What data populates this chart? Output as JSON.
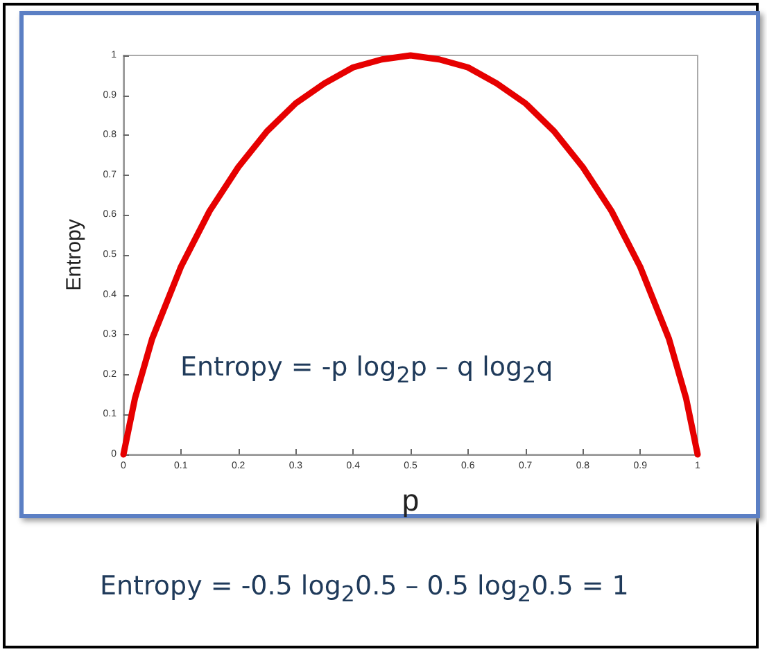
{
  "chart_data": {
    "type": "line",
    "xlabel": "p",
    "ylabel": "Entropy",
    "x": [
      0,
      0.02,
      0.05,
      0.1,
      0.15,
      0.2,
      0.25,
      0.3,
      0.35,
      0.4,
      0.45,
      0.5,
      0.55,
      0.6,
      0.65,
      0.7,
      0.75,
      0.8,
      0.85,
      0.9,
      0.95,
      0.98,
      1
    ],
    "series": [
      {
        "color": "#e60000",
        "values": [
          0,
          0.14,
          0.29,
          0.47,
          0.61,
          0.72,
          0.81,
          0.88,
          0.93,
          0.97,
          0.99,
          1,
          0.99,
          0.97,
          0.93,
          0.88,
          0.81,
          0.72,
          0.61,
          0.47,
          0.29,
          0.14,
          0
        ]
      }
    ],
    "xlim": [
      0,
      1
    ],
    "ylim": [
      0,
      1
    ],
    "xticks": [
      0,
      0.1,
      0.2,
      0.3,
      0.4,
      0.5,
      0.6,
      0.7,
      0.8,
      0.9,
      1
    ],
    "yticks": [
      0,
      0.1,
      0.2,
      0.3,
      0.4,
      0.5,
      0.6,
      0.7,
      0.8,
      0.9,
      1
    ],
    "grid": false,
    "marker": "none",
    "line_style": "solid",
    "annotations": [
      "Entropy  = -p log$_{2}$p – q log$_{2}$q",
      "Entropy = -0.5 log$_{2}$0.5 – 0.5 log$_{2}$0.5 = 1"
    ]
  }
}
